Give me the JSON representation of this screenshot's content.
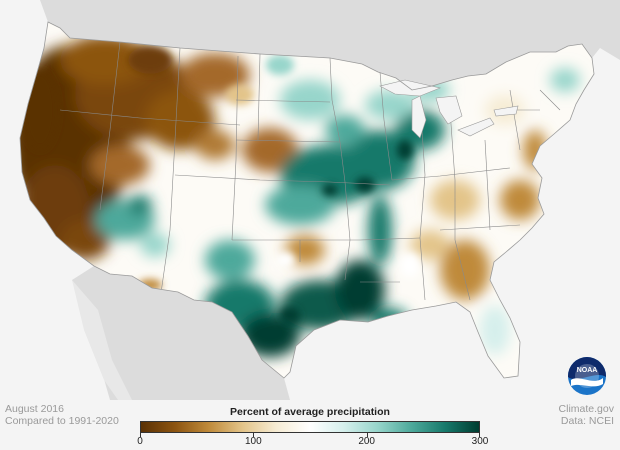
{
  "caption": {
    "date": "August 2016",
    "baseline": "Compared to 1991-2020",
    "source_site": "Climate.gov",
    "source_data": "Data: NCEI"
  },
  "legend": {
    "title": "Percent of average precipitation",
    "ticks": [
      "0",
      "100",
      "200",
      "300"
    ],
    "tick_values": [
      0,
      100,
      200,
      300
    ],
    "range": [
      0,
      300
    ],
    "colors": [
      "#5a3105",
      "#8c5410",
      "#bf8a3a",
      "#e3c489",
      "#f6ecd4",
      "#ffffff",
      "#d5efec",
      "#97d5cb",
      "#4ea99b",
      "#17796b",
      "#003d31"
    ]
  },
  "logo": {
    "text": "NOAA",
    "icon": "noaa-logo-icon"
  },
  "map_colors": {
    "land_base": "#fdfbf6",
    "ocean": "#f4f4f4",
    "neighbors": "#dcdcdc",
    "borders": "#8a8a8a"
  }
}
